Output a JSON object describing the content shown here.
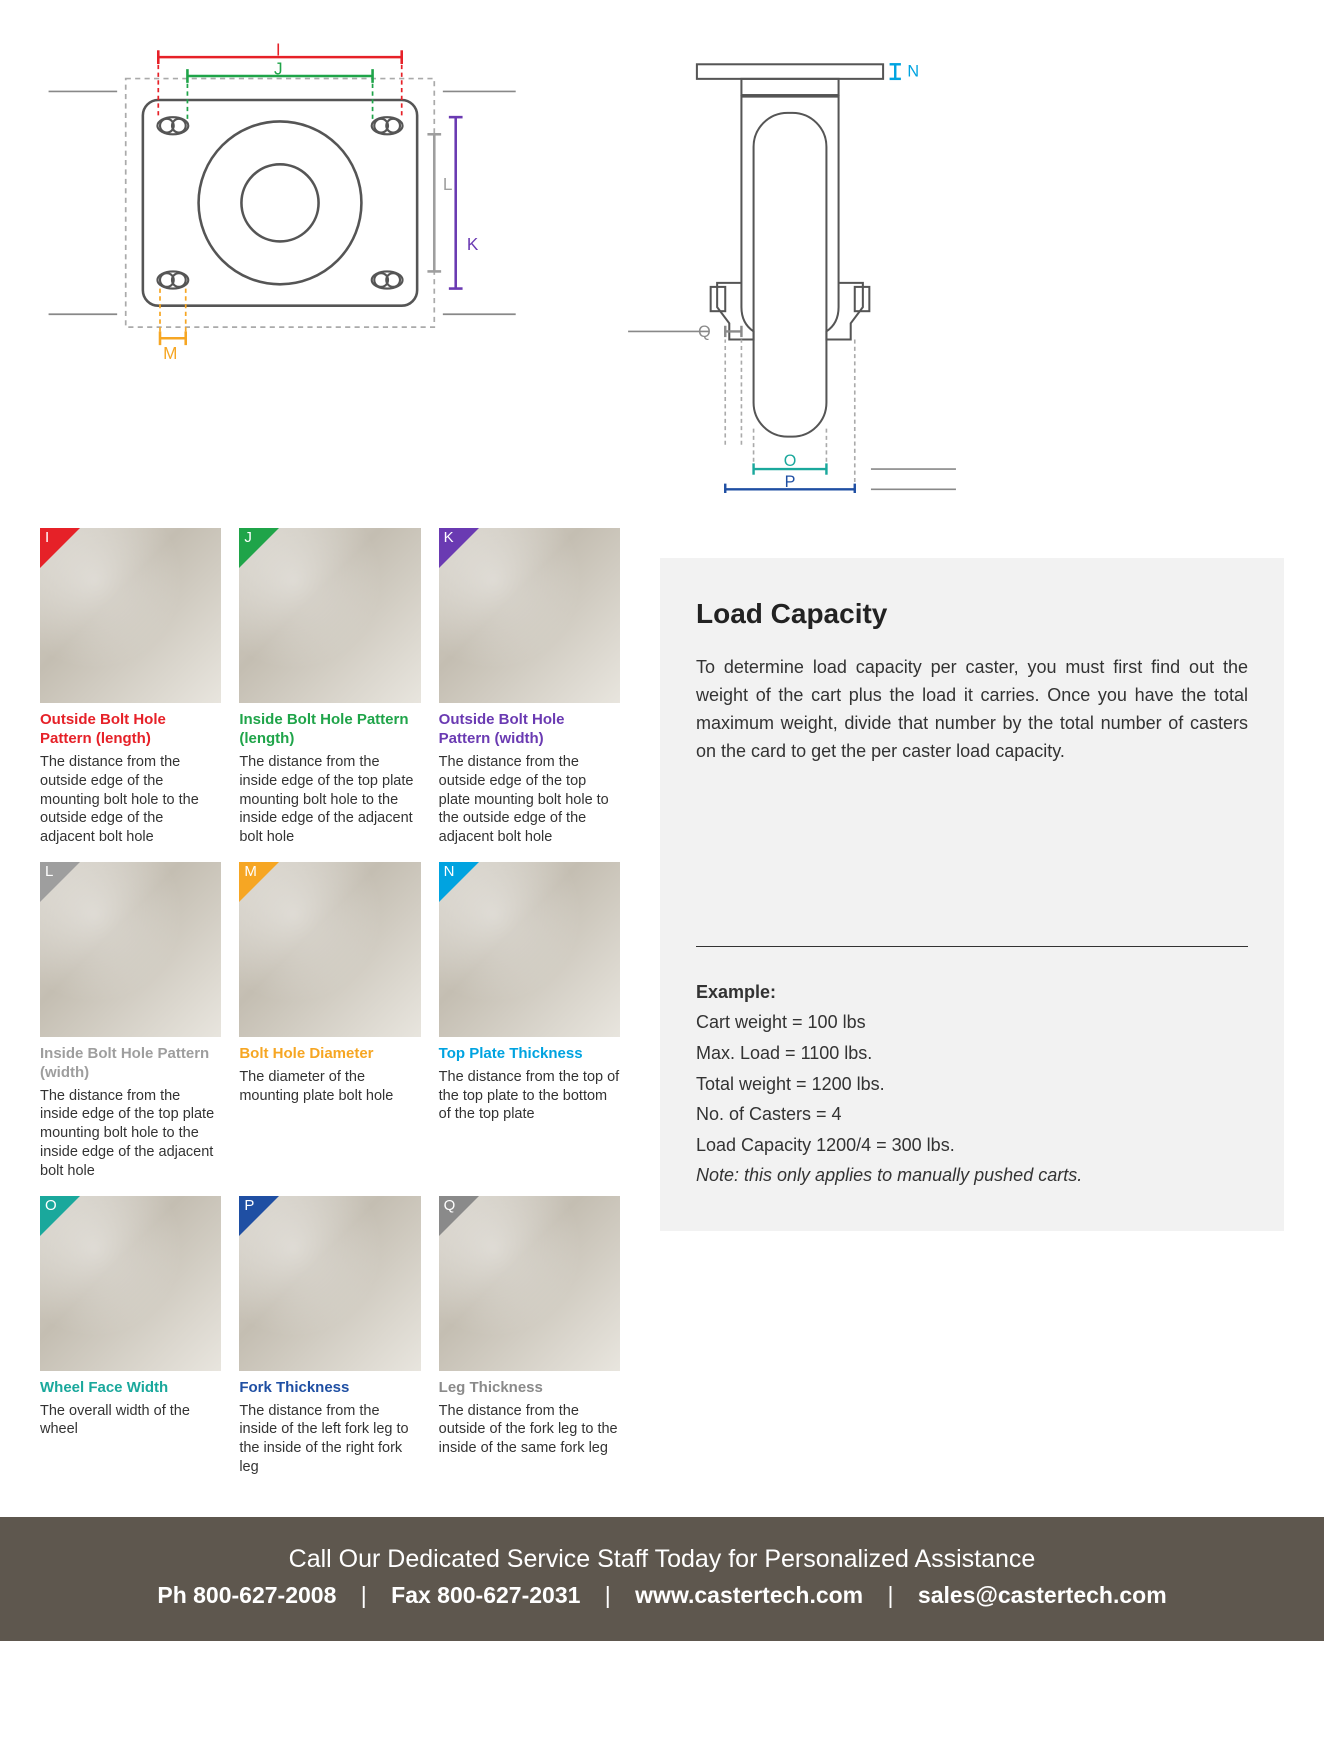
{
  "colors": {
    "I": "#e62128",
    "J": "#1fa449",
    "K": "#6a3ab2",
    "L": "#9e9e9e",
    "M": "#f6a623",
    "N": "#00a3e0",
    "O": "#1aa89c",
    "P": "#1f4fa3",
    "Q": "#8a8a8a",
    "footer_bg": "#5e574e",
    "info_bg": "#f2f2f2"
  },
  "diagram_top": {
    "labels": {
      "I": "I",
      "J": "J",
      "K": "K",
      "L": "L",
      "M": "M"
    }
  },
  "diagram_side": {
    "labels": {
      "N": "N",
      "O": "O",
      "P": "P",
      "Q": "Q"
    }
  },
  "cards": [
    {
      "key": "I",
      "letter": "I",
      "color": "#e62128",
      "title": "Outside Bolt Hole Pattern (length)",
      "desc": "The distance from the outside edge of the mounting bolt hole to the outside edge of the adjacent bolt hole"
    },
    {
      "key": "J",
      "letter": "J",
      "color": "#1fa449",
      "title": "Inside Bolt Hole Pattern (length)",
      "desc": "The distance from the inside edge of the top plate mounting bolt hole to the inside edge of the adjacent bolt hole"
    },
    {
      "key": "K",
      "letter": "K",
      "color": "#6a3ab2",
      "title": "Outside Bolt Hole Pattern (width)",
      "desc": "The distance from the outside edge of the top plate mounting bolt hole to the outside edge of the adjacent bolt hole"
    },
    {
      "key": "L",
      "letter": "L",
      "color": "#9e9e9e",
      "title": "Inside Bolt Hole Pattern (width)",
      "desc": "The distance from the inside edge of the top plate mounting bolt hole to the inside edge of the adjacent bolt hole"
    },
    {
      "key": "M",
      "letter": "M",
      "color": "#f6a623",
      "title": "Bolt Hole Diameter",
      "desc": "The diameter of the mounting plate bolt hole"
    },
    {
      "key": "N",
      "letter": "N",
      "color": "#00a3e0",
      "title": "Top Plate Thickness",
      "desc": "The distance from the top of the top plate to the bottom of the top plate"
    },
    {
      "key": "O",
      "letter": "O",
      "color": "#1aa89c",
      "title": "Wheel Face Width",
      "desc": "The overall width of the wheel"
    },
    {
      "key": "P",
      "letter": "P",
      "color": "#1f4fa3",
      "title": "Fork Thickness",
      "desc": "The distance from the inside of the left fork leg to the inside of the right fork leg"
    },
    {
      "key": "Q",
      "letter": "Q",
      "color": "#8a8a8a",
      "title": "Leg Thickness",
      "desc": "The distance from the outside of the fork leg to the inside of the same fork leg"
    }
  ],
  "load_capacity": {
    "heading": "Load Capacity",
    "body": "To determine load capacity per caster, you must first find out the weight of the cart plus the load it carries. Once you have the total maximum weight, divide that number by the total number of casters on the card to get the per caster load capacity.",
    "example_label": "Example:",
    "example_lines": [
      "Cart weight = 100 lbs",
      "Max. Load = 1100 lbs.",
      "Total weight = 1200 lbs.",
      "No. of Casters = 4",
      "Load Capacity 1200/4 = 300 lbs."
    ],
    "note": "Note: this only applies to manually pushed carts."
  },
  "footer": {
    "line1": "Call Our Dedicated Service Staff Today for Personalized Assistance",
    "phone": "Ph 800-627-2008",
    "fax": "Fax 800-627-2031",
    "web": "www.castertech.com",
    "email": "sales@castertech.com"
  }
}
